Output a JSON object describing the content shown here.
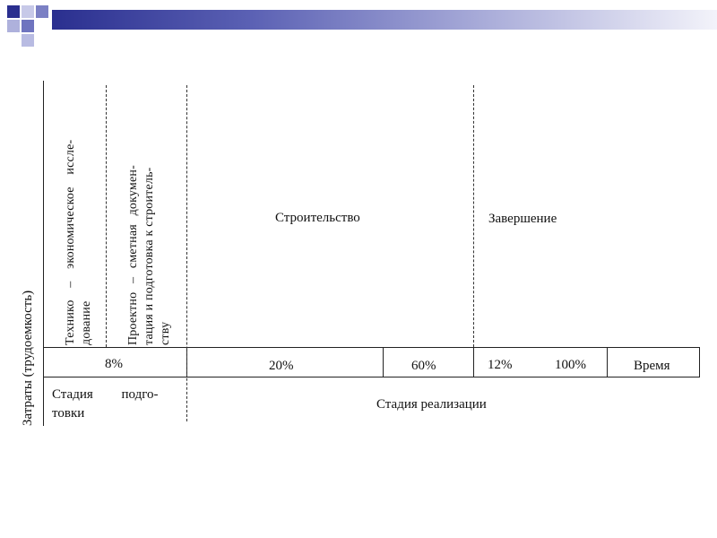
{
  "y_axis_label": "Затраты (трудоемкость)",
  "stages": {
    "techno": [
      "Технико – экономическое иссле-",
      "дование"
    ],
    "project": [
      "Проектно – сметная докумен-",
      "тация и подготовка к строитель-",
      "ству"
    ],
    "construction": "Строительство",
    "completion": "Завершение"
  },
  "percents": {
    "p8": "8%",
    "p20": "20%",
    "p60": "60%",
    "p12": "12%",
    "p100": "100%"
  },
  "time_label": "Время",
  "bottom": {
    "prep": [
      "Стадия подго-",
      "товки"
    ],
    "realization": "Стадия реализации"
  }
}
